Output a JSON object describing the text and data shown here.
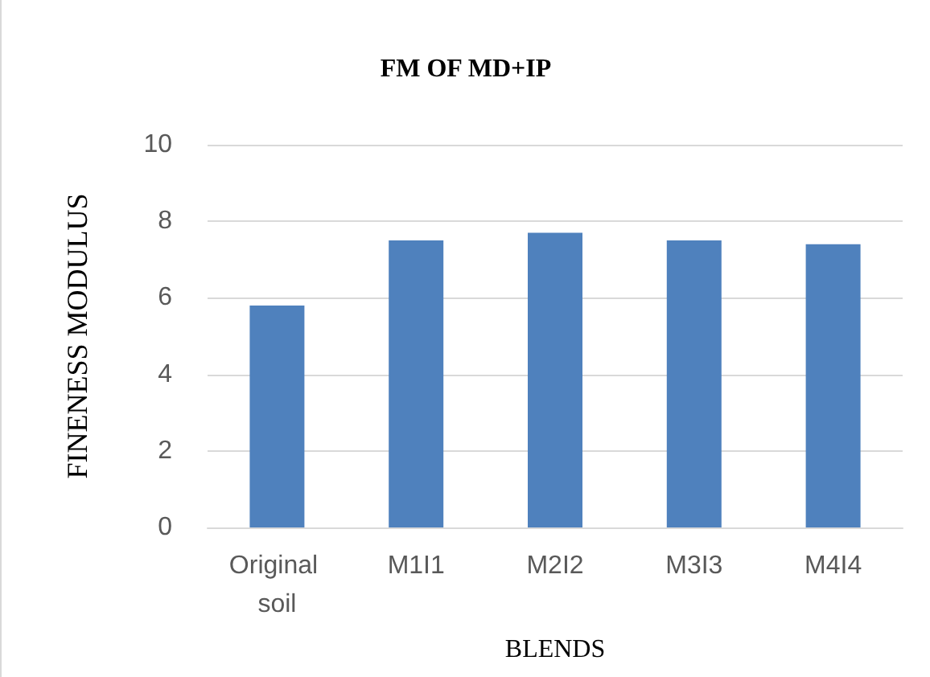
{
  "chart_data": {
    "type": "bar",
    "title": "FM OF MD+IP",
    "xlabel": "BLENDS",
    "ylabel": "FINENESS MODULUS",
    "categories": [
      "Original soil",
      "M1I1",
      "M2I2",
      "M3I3",
      "M4I4"
    ],
    "values": [
      5.8,
      7.5,
      7.7,
      7.5,
      7.4
    ],
    "color": "#4f81bd",
    "ylim": [
      0,
      10
    ],
    "yticks": [
      0,
      2,
      4,
      6,
      8,
      10
    ],
    "grid": "y"
  }
}
